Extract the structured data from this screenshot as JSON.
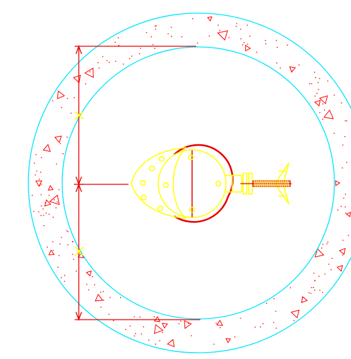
{
  "drawing": {
    "background": "#ffffff",
    "colors": {
      "ring": "#00e5ff",
      "dimension": "#e60000",
      "valve": "#ffff00",
      "aggregate": "#ff0000"
    },
    "dimension_labels": []
  }
}
